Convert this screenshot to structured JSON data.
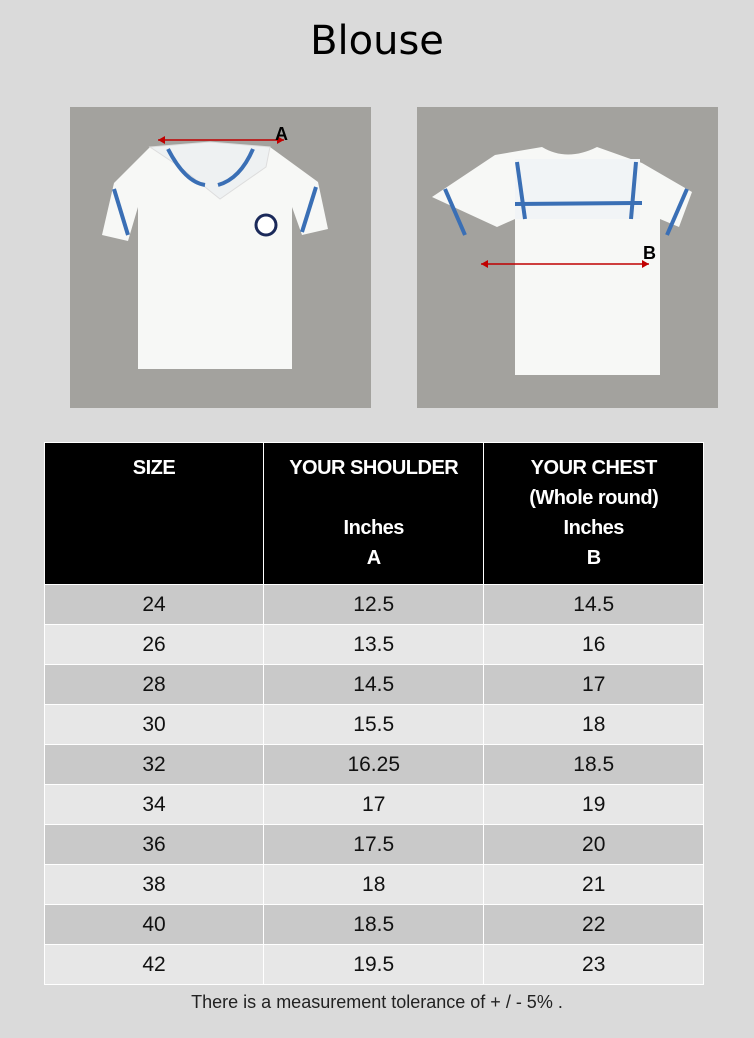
{
  "title": "Blouse",
  "photos": {
    "front_label": "A",
    "back_label": "B",
    "arrow_color": "#c00000",
    "trim_color": "#3a6fb5"
  },
  "table": {
    "headers": [
      {
        "lines": [
          "SIZE"
        ]
      },
      {
        "lines": [
          "YOUR SHOULDER",
          "",
          "Inches",
          "A"
        ]
      },
      {
        "lines": [
          "YOUR CHEST",
          "(Whole round)",
          "Inches",
          "B"
        ]
      }
    ],
    "rows": [
      [
        "24",
        "12.5",
        "14.5"
      ],
      [
        "26",
        "13.5",
        "16"
      ],
      [
        "28",
        "14.5",
        "17"
      ],
      [
        "30",
        "15.5",
        "18"
      ],
      [
        "32",
        "16.25",
        "18.5"
      ],
      [
        "34",
        "17",
        "19"
      ],
      [
        "36",
        "17.5",
        "20"
      ],
      [
        "38",
        "18",
        "21"
      ],
      [
        "40",
        "18.5",
        "22"
      ],
      [
        "42",
        "19.5",
        "23"
      ]
    ]
  },
  "note": "There is a measurement tolerance of  + / - 5% ."
}
